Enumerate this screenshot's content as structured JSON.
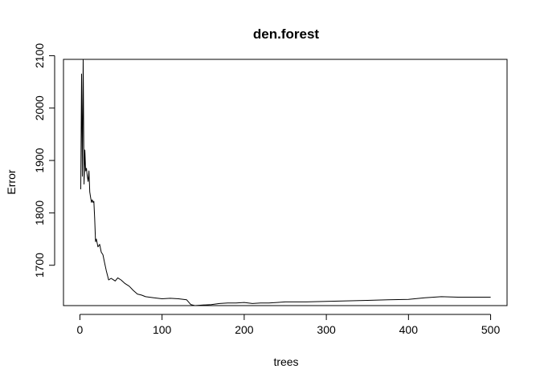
{
  "chart_data": {
    "type": "line",
    "title": "den.forest",
    "xlabel": "trees",
    "ylabel": "Error",
    "xlim": [
      -20,
      520
    ],
    "ylim": [
      1623,
      2093
    ],
    "xticks": [
      0,
      100,
      200,
      300,
      400,
      500
    ],
    "yticks": [
      1700,
      1800,
      1900,
      2000,
      2100
    ],
    "xtick_labels": [
      "0",
      "100",
      "200",
      "300",
      "400",
      "500"
    ],
    "ytick_labels": [
      "1700",
      "1800",
      "1900",
      "2000",
      "2100"
    ],
    "grid": false,
    "series": [
      {
        "color": "#000000",
        "x": [
          1,
          2,
          3,
          4,
          5,
          6,
          7,
          8,
          9,
          10,
          11,
          12,
          13,
          14,
          15,
          16,
          17,
          18,
          19,
          20,
          22,
          24,
          26,
          28,
          30,
          32,
          35,
          38,
          40,
          43,
          46,
          50,
          55,
          60,
          65,
          70,
          75,
          80,
          90,
          100,
          110,
          120,
          130,
          135,
          140,
          150,
          160,
          170,
          180,
          190,
          200,
          210,
          220,
          230,
          240,
          250,
          275,
          300,
          325,
          350,
          375,
          400,
          420,
          440,
          460,
          480,
          500
        ],
        "y": [
          1845,
          2065,
          1870,
          2093,
          1855,
          1920,
          1880,
          1885,
          1870,
          1860,
          1880,
          1840,
          1830,
          1820,
          1825,
          1820,
          1822,
          1790,
          1745,
          1750,
          1735,
          1740,
          1725,
          1720,
          1705,
          1690,
          1672,
          1675,
          1673,
          1670,
          1676,
          1672,
          1665,
          1660,
          1652,
          1645,
          1643,
          1640,
          1638,
          1636,
          1637,
          1636,
          1634,
          1625,
          1623,
          1624,
          1625,
          1627,
          1628,
          1628,
          1629,
          1627,
          1628,
          1628,
          1629,
          1630,
          1630,
          1631,
          1632,
          1633,
          1634,
          1635,
          1638,
          1640,
          1639,
          1639,
          1639
        ]
      }
    ]
  }
}
